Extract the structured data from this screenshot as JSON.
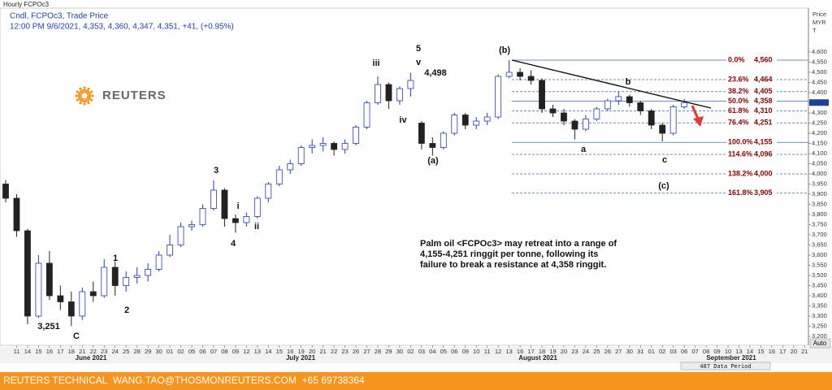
{
  "chart_data": {
    "type": "candlestick",
    "title": "Hourly FCPOc3",
    "subtitle": "Cndl, FCPOc3, Trade Price",
    "info": "12:00 PM 9/6/2021, 4,353, 4,360, 4,347, 4,351, +41, (+0.95%)",
    "y_axis_label": [
      "Price",
      "MYR",
      "T"
    ],
    "months": [
      "June 2021",
      "July 2021",
      "August 2021",
      "September 2021"
    ],
    "categories": [
      null,
      "11",
      "14",
      "15",
      "16",
      "17",
      "18",
      "21",
      "22",
      "23",
      "24",
      "25",
      "28",
      "29",
      "30",
      "01",
      "02",
      "05",
      "06",
      "07",
      "08",
      "09",
      "12",
      "13",
      "14",
      "15",
      "16",
      "19",
      "20",
      "21",
      "22",
      "23",
      "26",
      "27",
      "28",
      "29",
      "30",
      "02",
      "03",
      "04",
      "05",
      "06",
      "09",
      "10",
      "11",
      "12",
      "13",
      "16",
      "17",
      "18",
      "19",
      "20",
      "23",
      "24",
      "25",
      "26",
      "27",
      "30",
      "31",
      "01",
      "02",
      "03",
      "06",
      "07",
      "08",
      "09",
      "10",
      "13",
      "14",
      "15",
      "16",
      "17",
      "20",
      "21"
    ],
    "open": [
      3950,
      3880,
      3720,
      3300,
      3560,
      3400,
      3370,
      3300,
      3420,
      3400,
      3540,
      3450,
      3490,
      3500,
      3530,
      3600,
      3650,
      3740,
      3750,
      3830,
      3920,
      3780,
      3760,
      3790,
      3880,
      3950,
      4020,
      4050,
      4130,
      4140,
      4150,
      4120,
      4150,
      4230,
      4350,
      4440,
      4360,
      4420,
      4250,
      4150,
      4130,
      4200,
      4290,
      4240,
      4260,
      4280,
      4480,
      4500,
      4480,
      4460,
      4320,
      4300,
      4260,
      4220,
      4270,
      4320,
      4360,
      4380,
      4350,
      4310,
      4240,
      4200,
      4330,
      null,
      null,
      null,
      null,
      null,
      null,
      null,
      null,
      null,
      null,
      null
    ],
    "high": [
      3970,
      3900,
      3730,
      3600,
      3620,
      3450,
      3420,
      3440,
      3470,
      3580,
      3570,
      3520,
      3540,
      3560,
      3620,
      3700,
      3760,
      3770,
      3850,
      3968,
      3930,
      3800,
      3810,
      3890,
      3960,
      4040,
      4070,
      4140,
      4170,
      4180,
      4160,
      4170,
      4240,
      4360,
      4480,
      4450,
      4430,
      4498,
      4260,
      4180,
      4210,
      4300,
      4300,
      4280,
      4300,
      4490,
      4560,
      4520,
      4510,
      4470,
      4340,
      4320,
      4270,
      4290,
      4330,
      4370,
      4405,
      4390,
      4360,
      4320,
      4250,
      4340,
      4370,
      null,
      null,
      null,
      null,
      null,
      null,
      null,
      null,
      null,
      null,
      null
    ],
    "low": [
      3860,
      3690,
      3260,
      3290,
      3380,
      3330,
      3251,
      3280,
      3370,
      3390,
      3400,
      3420,
      3460,
      3470,
      3520,
      3590,
      3640,
      3720,
      3740,
      3820,
      3740,
      3710,
      3740,
      3780,
      3860,
      3940,
      4000,
      4040,
      4100,
      4110,
      4090,
      4100,
      4140,
      4220,
      4340,
      4320,
      4340,
      4380,
      4120,
      4090,
      4120,
      4190,
      4220,
      4220,
      4240,
      4270,
      4470,
      4460,
      4440,
      4300,
      4280,
      4240,
      4170,
      4210,
      4260,
      4310,
      4340,
      4330,
      4290,
      4220,
      4160,
      4190,
      4320,
      null,
      null,
      null,
      null,
      null,
      null,
      null,
      null,
      null,
      null,
      null
    ],
    "close": [
      3880,
      3720,
      3300,
      3560,
      3400,
      3370,
      3300,
      3420,
      3400,
      3540,
      3450,
      3490,
      3500,
      3530,
      3600,
      3650,
      3740,
      3750,
      3830,
      3920,
      3780,
      3760,
      3790,
      3880,
      3950,
      4020,
      4050,
      4130,
      4140,
      4150,
      4120,
      4150,
      4230,
      4350,
      4440,
      4360,
      4420,
      4460,
      4150,
      4130,
      4200,
      4290,
      4240,
      4260,
      4280,
      4480,
      4500,
      4480,
      4460,
      4320,
      4300,
      4260,
      4220,
      4270,
      4320,
      4360,
      4380,
      4350,
      4310,
      4240,
      4200,
      4330,
      4351,
      null,
      null,
      null,
      null,
      null,
      null,
      null,
      null,
      null,
      null,
      null
    ],
    "up_color": "#1f3fbf",
    "down_color": "#222222",
    "ylim": [
      3156,
      4816
    ],
    "yticks": [
      {
        "value": 3200,
        "label": "3,200"
      },
      {
        "value": 3250,
        "label": "3,250"
      },
      {
        "value": 3300,
        "label": "3,300"
      },
      {
        "value": 3350,
        "label": "3,350"
      },
      {
        "value": 3400,
        "label": "3,400"
      },
      {
        "value": 3450,
        "label": "3,450"
      },
      {
        "value": 3500,
        "label": "3,500"
      },
      {
        "value": 3550,
        "label": "3,550"
      },
      {
        "value": 3600,
        "label": "3,600"
      },
      {
        "value": 3650,
        "label": "3,650"
      },
      {
        "value": 3700,
        "label": "3,700"
      },
      {
        "value": 3750,
        "label": "3,750"
      },
      {
        "value": 3800,
        "label": "3,800"
      },
      {
        "value": 3850,
        "label": "3,850"
      },
      {
        "value": 3900,
        "label": "3,900"
      },
      {
        "value": 3950,
        "label": "3,950"
      },
      {
        "value": 4000,
        "label": "4,000"
      },
      {
        "value": 4050,
        "label": "4,050"
      },
      {
        "value": 4100,
        "label": "4,100"
      },
      {
        "value": 4150,
        "label": "4,150"
      },
      {
        "value": 4200,
        "label": "4,200"
      },
      {
        "value": 4250,
        "label": "4,250"
      },
      {
        "value": 4300,
        "label": "4,300"
      },
      {
        "value": 4350,
        "label": "4,350"
      },
      {
        "value": 4400,
        "label": "4,400"
      },
      {
        "value": 4450,
        "label": "4,450"
      },
      {
        "value": 4500,
        "label": "4,500"
      },
      {
        "value": 4550,
        "label": "4,550"
      },
      {
        "value": 4600,
        "label": "4,600"
      }
    ],
    "fib_levels": [
      {
        "percent": "0.0%",
        "value": 4560,
        "label": "4,560",
        "dashed": false
      },
      {
        "percent": "23.6%",
        "value": 4464,
        "label": "4,464",
        "dashed": true
      },
      {
        "percent": "38.2%",
        "value": 4405,
        "label": "4,405",
        "dashed": true
      },
      {
        "percent": "50.0%",
        "value": 4358,
        "label": "4,358",
        "dashed": false
      },
      {
        "percent": "61.8%",
        "value": 4310,
        "label": "4,310",
        "dashed": true
      },
      {
        "percent": "76.4%",
        "value": 4251,
        "label": "4,251",
        "dashed": true
      },
      {
        "percent": "100.0%",
        "value": 4155,
        "label": "4,155",
        "dashed": false
      },
      {
        "percent": "114.6%",
        "value": 4096,
        "label": "4,096",
        "dashed": true
      },
      {
        "percent": "138.2%",
        "value": 4000,
        "label": "4,000",
        "dashed": true
      },
      {
        "percent": "161.8%",
        "value": 3905,
        "label": "3,905",
        "dashed": true
      }
    ],
    "fib_color": "#3a6ea5",
    "wave_labels": [
      "5",
      "v",
      "iii",
      "iv",
      "3",
      "i",
      "ii",
      "4",
      "1",
      "2",
      "3,251",
      "C",
      "(b)",
      "4,498",
      "(a)",
      "b",
      "a",
      "c",
      "(c)"
    ],
    "annotation": [
      "Palm oil <FCPOc3> may retreat into a range of",
      "4,155-4,251 ringgit per tonne, following its",
      "failure to break a resistance at 4,358 ringgit."
    ],
    "logo": "REUTERS",
    "data_period": "487 Data Period",
    "auto_button": "Auto",
    "footer": "REUTERS TECHNICAL  WANG.TAO@THOSMONREUTERS.COM  +65 69738364"
  }
}
